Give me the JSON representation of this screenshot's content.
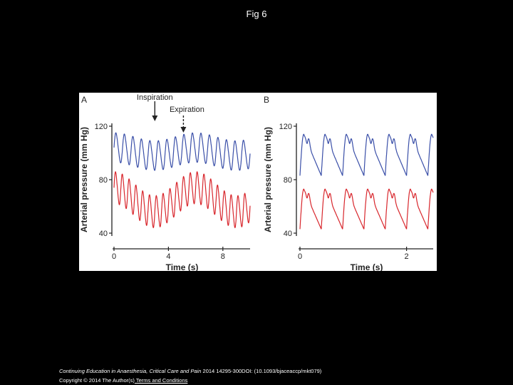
{
  "slide": {
    "title": "Fig 6"
  },
  "footer": {
    "journal": "Continuing Education in Anaesthesia, Critical Care and Pain",
    "citation": " 2014 14295-300DOI: (10.1093/bjaceaccp/mkt079)",
    "copyright": "Copyright © 2014 The Author(s)",
    "terms": " Terms and Conditions"
  },
  "colors": {
    "systolic_trace": "#3a4fa8",
    "diastolic_trace": "#d8262c",
    "axis": "#000000"
  },
  "chart_data": [
    {
      "panel": "A",
      "type": "line",
      "xlabel": "Time (s)",
      "ylabel": "Arterial pressure (mm Hg)",
      "xlim": [
        0,
        10
      ],
      "ylim": [
        40,
        120
      ],
      "xticks": [
        0,
        4,
        8
      ],
      "yticks": [
        40,
        80,
        120
      ],
      "annotations": [
        {
          "text": "Inspiration",
          "x": 3.0,
          "style": "solid-arrow"
        },
        {
          "text": "Expiration",
          "x": 5.1,
          "style": "dashed-arrow"
        }
      ],
      "series": [
        {
          "color_key": "systolic_trace",
          "wave": {
            "heart_rate_hz": 1.6,
            "peak": 113,
            "trough": 89,
            "resp_period_s": 6.0,
            "resp_amplitude": 3
          }
        },
        {
          "color_key": "diastolic_trace",
          "wave": {
            "heart_rate_hz": 2.0,
            "peak": 78,
            "trough": 52,
            "resp_period_s": 6.0,
            "resp_amplitude": 9
          }
        }
      ]
    },
    {
      "panel": "B",
      "type": "line",
      "xlabel": "Time (s)",
      "ylabel": "Arterial pressure (mm Hg)",
      "xlim": [
        0,
        2.5
      ],
      "ylim": [
        40,
        120
      ],
      "xticks": [
        0,
        2
      ],
      "yticks": [
        40,
        80,
        120
      ],
      "series": [
        {
          "color_key": "systolic_trace",
          "wave": {
            "heart_rate_hz": 2.5,
            "peak": 114,
            "trough": 83
          }
        },
        {
          "color_key": "diastolic_trace",
          "wave": {
            "heart_rate_hz": 2.5,
            "peak": 73,
            "trough": 43
          }
        }
      ]
    }
  ]
}
